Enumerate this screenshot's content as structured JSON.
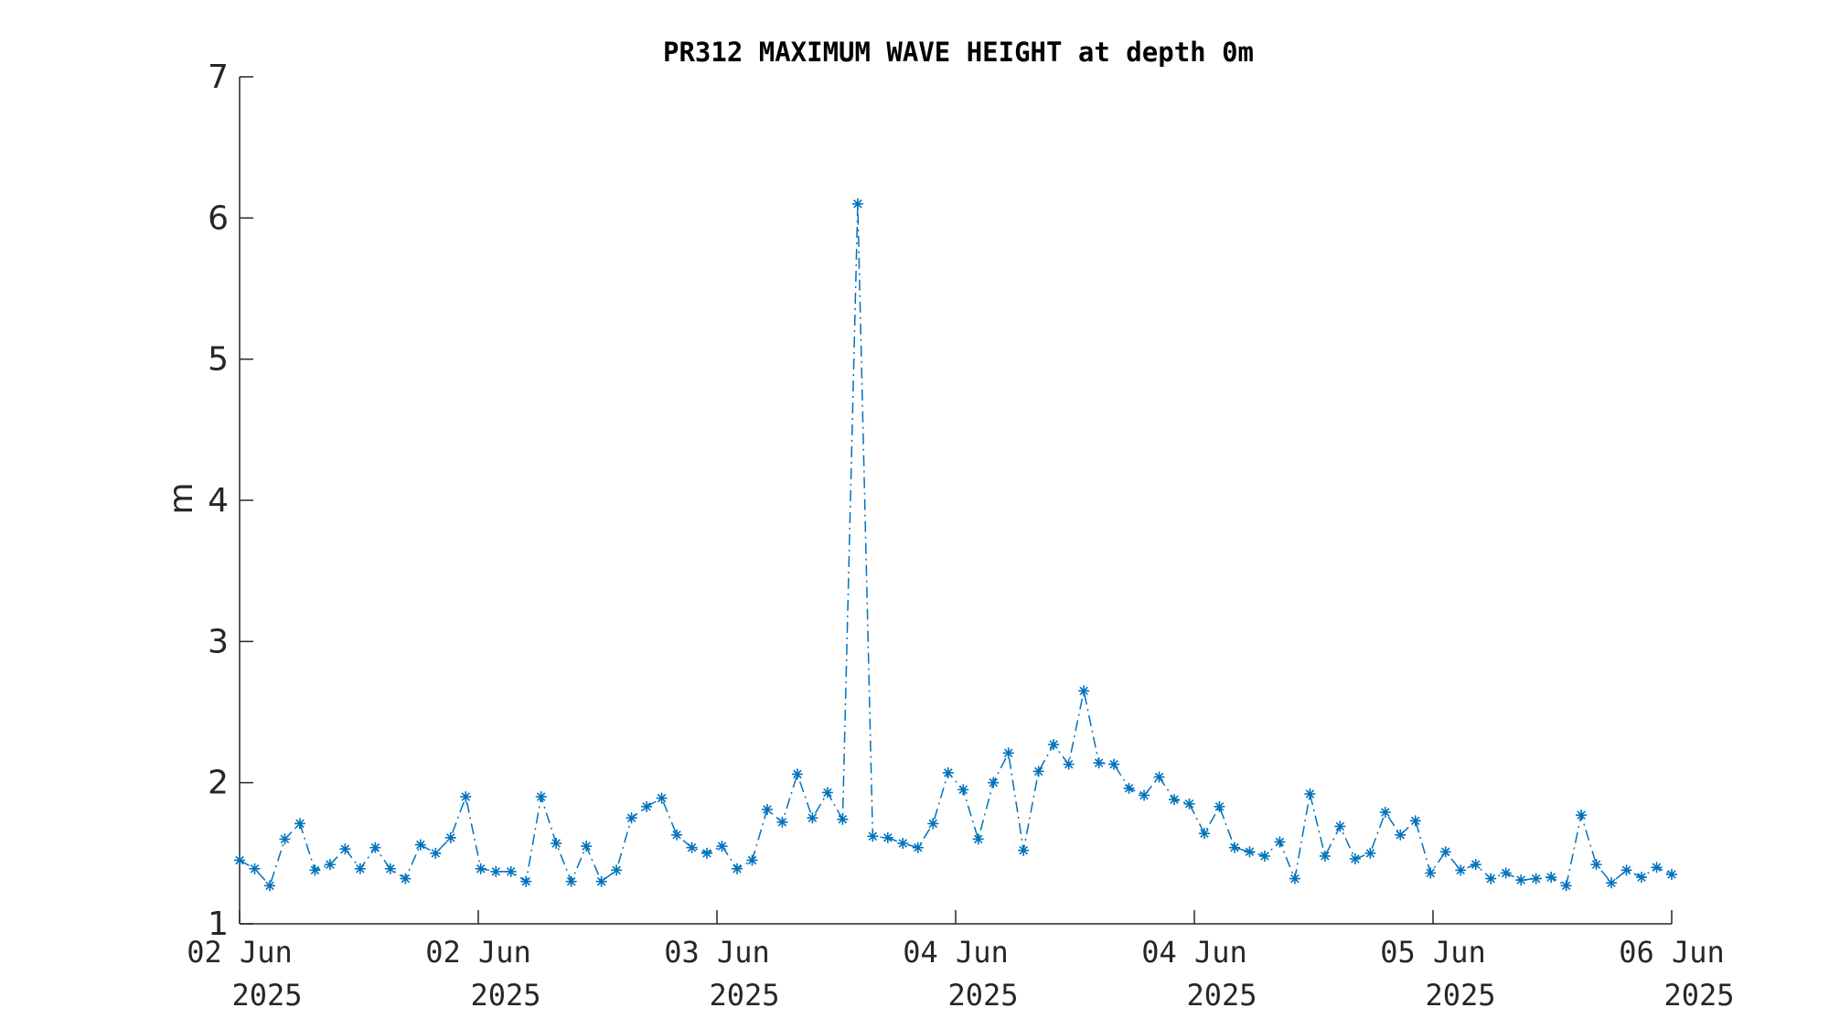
{
  "chart_data": {
    "type": "line",
    "title": "PR312 MAXIMUM WAVE HEIGHT at depth 0m",
    "ylabel": "m",
    "ylim": [
      1,
      7
    ],
    "yticks": [
      1,
      2,
      3,
      4,
      5,
      6,
      7
    ],
    "xticks": [
      {
        "line1": "02 Jun",
        "line2": "2025"
      },
      {
        "line1": "02 Jun",
        "line2": "2025"
      },
      {
        "line1": "03 Jun",
        "line2": "2025"
      },
      {
        "line1": "04 Jun",
        "line2": "2025"
      },
      {
        "line1": "04 Jun",
        "line2": "2025"
      },
      {
        "line1": "05 Jun",
        "line2": "2025"
      },
      {
        "line1": "06 Jun",
        "line2": "2025"
      }
    ],
    "colors": {
      "series": "#0072bd",
      "axis": "#262626"
    },
    "series": [
      {
        "marker": "asterisk",
        "line_style": "dash-dot",
        "values": [
          1.45,
          1.39,
          1.27,
          1.6,
          1.71,
          1.38,
          1.42,
          1.53,
          1.39,
          1.54,
          1.39,
          1.32,
          1.56,
          1.5,
          1.61,
          1.9,
          1.39,
          1.37,
          1.37,
          1.3,
          1.9,
          1.57,
          1.3,
          1.55,
          1.3,
          1.38,
          1.75,
          1.83,
          1.89,
          1.63,
          1.54,
          1.5,
          1.55,
          1.39,
          1.45,
          1.81,
          1.72,
          2.06,
          1.75,
          1.93,
          1.74,
          6.1,
          1.62,
          1.61,
          1.57,
          1.54,
          1.71,
          2.07,
          1.95,
          1.6,
          2.0,
          2.21,
          1.52,
          2.08,
          2.27,
          2.13,
          2.65,
          2.14,
          2.13,
          1.96,
          1.91,
          2.04,
          1.88,
          1.85,
          1.64,
          1.83,
          1.54,
          1.51,
          1.48,
          1.58,
          1.32,
          1.92,
          1.48,
          1.69,
          1.46,
          1.5,
          1.79,
          1.63,
          1.73,
          1.36,
          1.51,
          1.38,
          1.42,
          1.32,
          1.36,
          1.31,
          1.32,
          1.33,
          1.27,
          1.77,
          1.42,
          1.29,
          1.38,
          1.33,
          1.4,
          1.35
        ]
      }
    ]
  }
}
